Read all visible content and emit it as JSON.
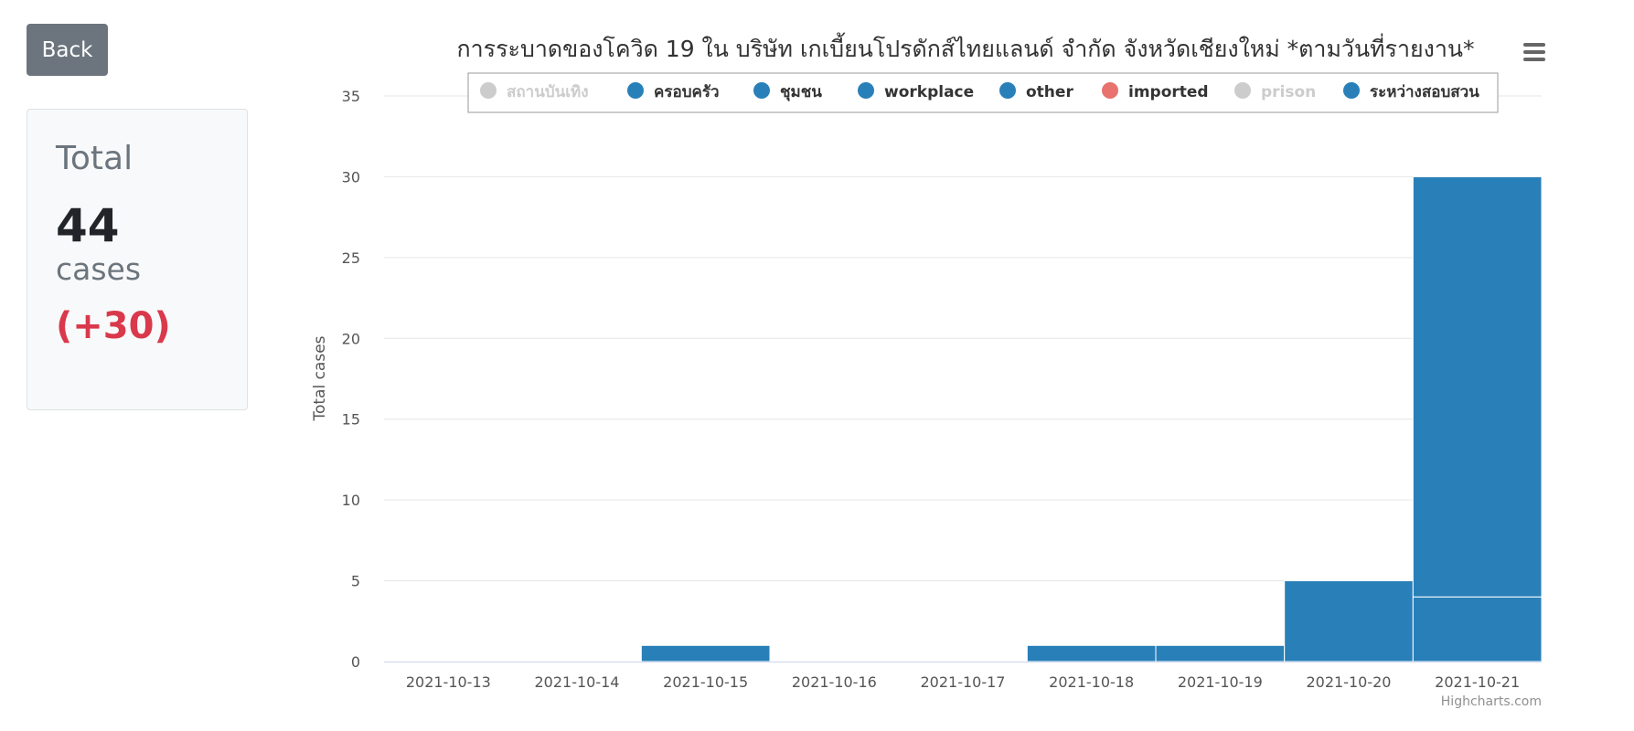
{
  "back_button": {
    "label": "Back"
  },
  "summary": {
    "title": "Total",
    "value": "44",
    "unit": "cases",
    "delta": "(+30)"
  },
  "chart_data": {
    "type": "bar",
    "stacked": true,
    "title": "การระบาดของโควิด 19 ใน บริษัท เกเบี้ยนโปรดักส์ไทยแลนด์ จำกัด จังหวัดเชียงใหม่ *ตามวันที่รายงาน*",
    "xlabel": "",
    "ylabel": "Total cases",
    "ylim": [
      0,
      35
    ],
    "yticks": [
      0,
      5,
      10,
      15,
      20,
      25,
      30,
      35
    ],
    "grid": true,
    "legend_position": "top",
    "categories": [
      "2021-10-13",
      "2021-10-14",
      "2021-10-15",
      "2021-10-16",
      "2021-10-17",
      "2021-10-18",
      "2021-10-19",
      "2021-10-20",
      "2021-10-21"
    ],
    "series": [
      {
        "name": "สถานบันเทิง",
        "color": "#cccccc",
        "visible": false,
        "values": [
          0,
          0,
          0,
          0,
          0,
          0,
          0,
          0,
          0
        ]
      },
      {
        "name": "ครอบครัว",
        "color": "#2980b9",
        "visible": true,
        "values": [
          0,
          0,
          0,
          0,
          0,
          0,
          0,
          0,
          4
        ]
      },
      {
        "name": "ชุมชน",
        "color": "#2980b9",
        "visible": true,
        "values": [
          0,
          0,
          1,
          0,
          0,
          1,
          1,
          5,
          26
        ]
      },
      {
        "name": "workplace",
        "color": "#2980b9",
        "visible": true,
        "values": [
          0,
          0,
          0,
          0,
          0,
          0,
          0,
          0,
          0
        ]
      },
      {
        "name": "other",
        "color": "#2980b9",
        "visible": true,
        "values": [
          0,
          0,
          0,
          0,
          0,
          0,
          0,
          0,
          0
        ]
      },
      {
        "name": "imported",
        "color": "#e8726d",
        "visible": true,
        "values": [
          0,
          0,
          0,
          0,
          0,
          0,
          0,
          0,
          0
        ]
      },
      {
        "name": "prison",
        "color": "#cccccc",
        "visible": false,
        "values": [
          0,
          0,
          0,
          0,
          0,
          0,
          0,
          0,
          0
        ]
      },
      {
        "name": "ระหว่างสอบสวน",
        "color": "#2980b9",
        "visible": true,
        "values": [
          0,
          0,
          0,
          0,
          0,
          0,
          0,
          0,
          0
        ]
      }
    ],
    "credits": "Highcharts.com"
  }
}
